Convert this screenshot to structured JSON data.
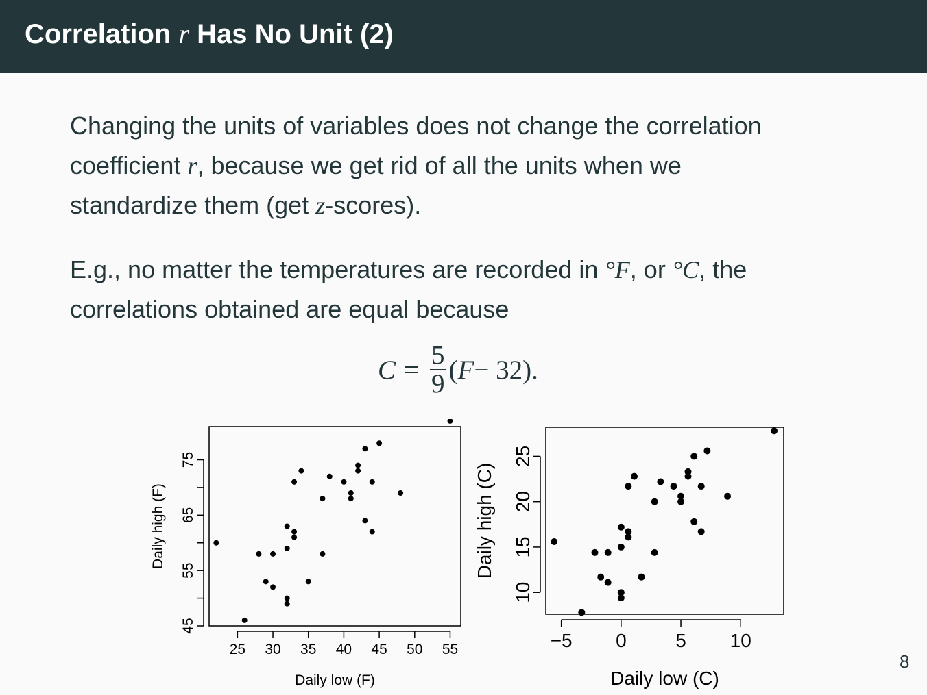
{
  "slide": {
    "title_pre": "Correlation ",
    "title_var": "r",
    "title_post": " Has No Unit (2)",
    "page_number": "8"
  },
  "body": {
    "p1_l1": "Changing the units of variables does not change the correlation",
    "p1_l2_a": "coefficient ",
    "p1_l2_var": "r",
    "p1_l2_b": ", because we get rid of all the units when we",
    "p1_l3_a": "standardize them (get ",
    "p1_l3_var": "z",
    "p1_l3_b": "-scores).",
    "p2_l1_a": "E.g., no matter the temperatures are recorded in ",
    "p2_l1_unit1": "°F",
    "p2_l1_b": ", or ",
    "p2_l1_unit2": "°C",
    "p2_l1_c": ", the",
    "p2_l2": "correlations obtained are equal because"
  },
  "equation": {
    "lhs": "C",
    "equals": "=",
    "numerator": "5",
    "denominator": "9",
    "rhs_open": "(",
    "rhs_var": "F",
    "rhs_rest": " − 32)."
  },
  "chart_data": [
    {
      "type": "scatter",
      "xlabel": "Daily low (F)",
      "ylabel": "Daily high (F)",
      "xlim": [
        21,
        56.5
      ],
      "ylim": [
        45,
        81
      ],
      "xticks": [
        "25",
        "30",
        "35",
        "40",
        "45",
        "50",
        "55"
      ],
      "yticks": [
        "45",
        "55",
        "65",
        "75"
      ],
      "points": [
        [
          22,
          60
        ],
        [
          26,
          46
        ],
        [
          28,
          58
        ],
        [
          29,
          53
        ],
        [
          30,
          52
        ],
        [
          30,
          58
        ],
        [
          32,
          49
        ],
        [
          32,
          50
        ],
        [
          32,
          59
        ],
        [
          32,
          63
        ],
        [
          33,
          61
        ],
        [
          33,
          62
        ],
        [
          33,
          71
        ],
        [
          34,
          73
        ],
        [
          35,
          53
        ],
        [
          37,
          58
        ],
        [
          37,
          68
        ],
        [
          38,
          72
        ],
        [
          40,
          71
        ],
        [
          41,
          68
        ],
        [
          41,
          69
        ],
        [
          42,
          73
        ],
        [
          42,
          74
        ],
        [
          43,
          64
        ],
        [
          43,
          77
        ],
        [
          44,
          62
        ],
        [
          44,
          71
        ],
        [
          45,
          78
        ],
        [
          48,
          69
        ],
        [
          55,
          82
        ]
      ]
    },
    {
      "type": "scatter",
      "xlabel": "Daily low (C)",
      "ylabel": "Daily high (C)",
      "xlim": [
        -6.3,
        13.6
      ],
      "ylim": [
        7.6,
        28.2
      ],
      "xticks": [
        "−5",
        "0",
        "5",
        "10"
      ],
      "yticks": [
        "10",
        "15",
        "20",
        "25"
      ],
      "points": [
        [
          -5.6,
          15.6
        ],
        [
          -3.3,
          7.8
        ],
        [
          -2.2,
          14.4
        ],
        [
          -1.7,
          11.7
        ],
        [
          -1.1,
          11.1
        ],
        [
          -1.1,
          14.4
        ],
        [
          0,
          9.4
        ],
        [
          0,
          10.0
        ],
        [
          0,
          15.0
        ],
        [
          0,
          17.2
        ],
        [
          0.6,
          16.1
        ],
        [
          0.6,
          16.7
        ],
        [
          0.6,
          21.7
        ],
        [
          1.1,
          22.8
        ],
        [
          1.7,
          11.7
        ],
        [
          2.8,
          14.4
        ],
        [
          2.8,
          20.0
        ],
        [
          3.3,
          22.2
        ],
        [
          4.4,
          21.7
        ],
        [
          5.0,
          20.0
        ],
        [
          5.0,
          20.6
        ],
        [
          5.6,
          22.8
        ],
        [
          5.6,
          23.3
        ],
        [
          6.1,
          17.8
        ],
        [
          6.1,
          25.0
        ],
        [
          6.7,
          16.7
        ],
        [
          6.7,
          21.7
        ],
        [
          7.2,
          25.6
        ],
        [
          8.9,
          20.6
        ],
        [
          12.8,
          27.8
        ]
      ]
    }
  ]
}
